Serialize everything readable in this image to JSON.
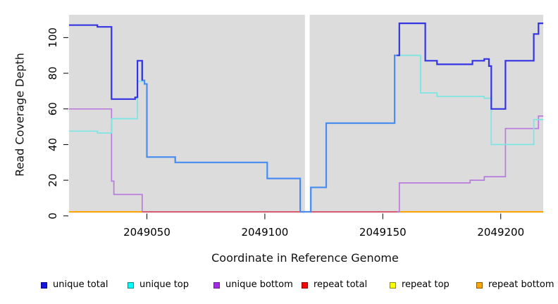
{
  "figure": {
    "background": "#FFFFFF",
    "plot_background": "#DCDCDC",
    "mask_band_color": "#FFFFFF"
  },
  "axes": {
    "x": {
      "title": "Coordinate in Reference Genome",
      "tick_labels": [
        "2049050",
        "2049100",
        "2049150",
        "2049200"
      ],
      "tick_values": [
        2049050,
        2049100,
        2049150,
        2049200
      ],
      "range": [
        2049017,
        2049218
      ]
    },
    "y": {
      "title": "Read Coverage Depth",
      "tick_labels": [
        "0",
        "20",
        "40",
        "60",
        "80",
        "100"
      ],
      "tick_values": [
        0,
        20,
        40,
        60,
        80,
        100
      ],
      "range": [
        0,
        112
      ]
    }
  },
  "chart_data": {
    "type": "line",
    "step": true,
    "title": "",
    "xlabel": "Coordinate in Reference Genome",
    "ylabel": "Read Coverage Depth",
    "xlim": [
      2049017,
      2049218
    ],
    "ylim": [
      0,
      112
    ],
    "grid": false,
    "legend_position": "bottom",
    "mask_region": {
      "from": 2049117,
      "to": 2049119,
      "note": "white vertical band, no data"
    },
    "series": [
      {
        "name": "unique total",
        "key": "unique_total",
        "color": "#3434E2",
        "overlap_color": "#4A8CEF",
        "points": [
          [
            2049017,
            107
          ],
          [
            2049029,
            106
          ],
          [
            2049035,
            65.5
          ],
          [
            2049045,
            66.5
          ],
          [
            2049046,
            87
          ],
          [
            2049048,
            76
          ],
          [
            2049049,
            74
          ],
          [
            2049050,
            33
          ],
          [
            2049062,
            30
          ],
          [
            2049101,
            21
          ],
          [
            2049115,
            0
          ],
          [
            2049119.5,
            16
          ],
          [
            2049126,
            52
          ],
          [
            2049155,
            90
          ],
          [
            2049157,
            108
          ],
          [
            2049168,
            87
          ],
          [
            2049173,
            85
          ],
          [
            2049188,
            87
          ],
          [
            2049193,
            88
          ],
          [
            2049195,
            84
          ],
          [
            2049196,
            60
          ],
          [
            2049202,
            87
          ],
          [
            2049214,
            102
          ],
          [
            2049216,
            108
          ]
        ]
      },
      {
        "name": "unique top",
        "key": "unique_top",
        "color": "#7FE5E2",
        "points": [
          [
            2049017,
            47.5
          ],
          [
            2049029,
            46.5
          ],
          [
            2049035,
            54.5
          ],
          [
            2049046,
            75.5
          ],
          [
            2049049,
            74
          ],
          [
            2049050,
            33
          ],
          [
            2049062,
            30
          ],
          [
            2049101,
            21
          ],
          [
            2049115,
            0
          ],
          [
            2049119.5,
            16
          ],
          [
            2049126,
            52
          ],
          [
            2049155,
            90
          ],
          [
            2049166,
            69
          ],
          [
            2049173,
            67
          ],
          [
            2049193,
            66
          ],
          [
            2049196,
            40
          ],
          [
            2049214,
            54
          ]
        ]
      },
      {
        "name": "unique bottom",
        "key": "unique_bottom",
        "color": "#BA7BDC",
        "points": [
          [
            2049017,
            60
          ],
          [
            2049035,
            19.5
          ],
          [
            2049036,
            12
          ],
          [
            2049048,
            0
          ],
          [
            2049157,
            18.5
          ],
          [
            2049187,
            20
          ],
          [
            2049193,
            22
          ],
          [
            2049202,
            49
          ],
          [
            2049216,
            56
          ]
        ]
      },
      {
        "name": "repeat total",
        "key": "repeat_total",
        "color": "#DD2222",
        "points": [
          [
            2049017,
            0
          ]
        ]
      },
      {
        "name": "repeat top",
        "key": "repeat_top",
        "color": "#FFFF00",
        "points": [
          [
            2049017,
            0
          ]
        ]
      },
      {
        "name": "repeat bottom",
        "key": "repeat_bottom",
        "color": "#FFA500",
        "points": [
          [
            2049017,
            0
          ]
        ]
      }
    ],
    "layers": [
      {
        "series": "repeat_total",
        "from": 2049017,
        "to": 2049218,
        "color": "#DD2222",
        "width": 1.5,
        "name": "repeat-total-line"
      },
      {
        "series": "repeat_top",
        "from": 2049017,
        "to": 2049218,
        "color": "#FFFF00",
        "width": 1.5,
        "name": "repeat-top-line"
      },
      {
        "series": "repeat_bottom",
        "from": 2049017,
        "to": 2049218,
        "color": "#FFA500",
        "width": 2.0,
        "name": "repeat-bottom-line"
      },
      {
        "points": [
          [
            2049048,
            0
          ]
        ],
        "from": 2049048,
        "to": 2049157,
        "color": "#D5537F",
        "width": 1.7,
        "name": "zero-overlap-blend-line"
      },
      {
        "series": "unique_bottom",
        "from": 2049017,
        "to": 2049048,
        "color": "#BA7BDC",
        "width": 1.7,
        "name": "unique-bottom-line-left"
      },
      {
        "series": "unique_bottom",
        "from": 2049156,
        "to": 2049218,
        "color": "#BA7BDC",
        "width": 1.7,
        "name": "unique-bottom-line-right"
      },
      {
        "series": "unique_top",
        "from": 2049017,
        "to": 2049218,
        "color": "#7FE5E2",
        "width": 1.8,
        "name": "unique-top-line"
      },
      {
        "series": "unique_total",
        "from": 2049048,
        "to": 2049156,
        "color": "#4A8CEF",
        "width": 2.2,
        "name": "unique-total-line-overlap"
      },
      {
        "series": "unique_total",
        "from": 2049017,
        "to": 2049048,
        "color": "#3434E2",
        "width": 2.2,
        "name": "unique-total-line-left"
      },
      {
        "series": "unique_total",
        "from": 2049156,
        "to": 2049218,
        "color": "#3434E2",
        "width": 2.2,
        "name": "unique-total-line-right"
      }
    ]
  },
  "legend": {
    "items": [
      {
        "label": "unique total",
        "fill": "#1515E0",
        "border": "#00008B"
      },
      {
        "label": "unique top",
        "fill": "#00FFFF",
        "border": "#008B8B"
      },
      {
        "label": "unique bottom",
        "fill": "#A428E8",
        "border": "#6A1B9A"
      },
      {
        "label": "repeat total",
        "fill": "#FF0000",
        "border": "#8B0000"
      },
      {
        "label": "repeat top",
        "fill": "#FFFF00",
        "border": "#8B8B00"
      },
      {
        "label": "repeat bottom",
        "fill": "#FFA500",
        "border": "#8B5A00"
      }
    ]
  }
}
